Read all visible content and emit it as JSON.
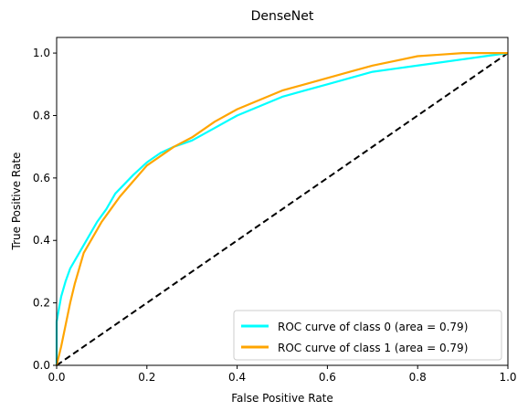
{
  "chart_data": {
    "type": "line",
    "title": "DenseNet",
    "xlabel": "False Positive Rate",
    "ylabel": "True Positive Rate",
    "xlim": [
      0.0,
      1.0
    ],
    "ylim": [
      0.0,
      1.05
    ],
    "xticks": [
      0.0,
      0.2,
      0.4,
      0.6,
      0.8,
      1.0
    ],
    "yticks": [
      0.0,
      0.2,
      0.4,
      0.6,
      0.8,
      1.0
    ],
    "xtick_labels": [
      "0.0",
      "0.2",
      "0.4",
      "0.6",
      "0.8",
      "1.0"
    ],
    "ytick_labels": [
      "0.0",
      "0.2",
      "0.4",
      "0.6",
      "0.8",
      "1.0"
    ],
    "grid": false,
    "legend_position": "lower-right",
    "series": [
      {
        "name": "ROC curve of class 0 (area = 0.79)",
        "color": "#00ffff",
        "style": "solid",
        "x": [
          0.0,
          0.0,
          0.01,
          0.02,
          0.03,
          0.05,
          0.07,
          0.09,
          0.11,
          0.13,
          0.15,
          0.17,
          0.2,
          0.23,
          0.26,
          0.3,
          0.35,
          0.4,
          0.45,
          0.5,
          0.55,
          0.6,
          0.65,
          0.7,
          0.75,
          0.8,
          0.85,
          0.9,
          0.95,
          1.0
        ],
        "y": [
          0.0,
          0.14,
          0.22,
          0.27,
          0.31,
          0.36,
          0.41,
          0.46,
          0.5,
          0.55,
          0.58,
          0.61,
          0.65,
          0.68,
          0.7,
          0.72,
          0.76,
          0.8,
          0.83,
          0.86,
          0.88,
          0.9,
          0.92,
          0.94,
          0.95,
          0.96,
          0.97,
          0.98,
          0.99,
          1.0
        ]
      },
      {
        "name": "ROC curve of class 1 (area = 0.79)",
        "color": "#ffa500",
        "style": "solid",
        "x": [
          0.0,
          0.01,
          0.02,
          0.03,
          0.04,
          0.05,
          0.06,
          0.08,
          0.1,
          0.12,
          0.14,
          0.17,
          0.2,
          0.23,
          0.26,
          0.3,
          0.35,
          0.4,
          0.45,
          0.5,
          0.55,
          0.6,
          0.65,
          0.7,
          0.75,
          0.8,
          0.85,
          0.9,
          1.0
        ],
        "y": [
          0.0,
          0.06,
          0.13,
          0.2,
          0.26,
          0.31,
          0.36,
          0.41,
          0.46,
          0.5,
          0.54,
          0.59,
          0.64,
          0.67,
          0.7,
          0.73,
          0.78,
          0.82,
          0.85,
          0.88,
          0.9,
          0.92,
          0.94,
          0.96,
          0.975,
          0.99,
          0.995,
          1.0,
          1.0
        ]
      },
      {
        "name": "",
        "color": "#000000",
        "style": "dashed",
        "x": [
          0.0,
          1.0
        ],
        "y": [
          0.0,
          1.0
        ]
      }
    ]
  }
}
